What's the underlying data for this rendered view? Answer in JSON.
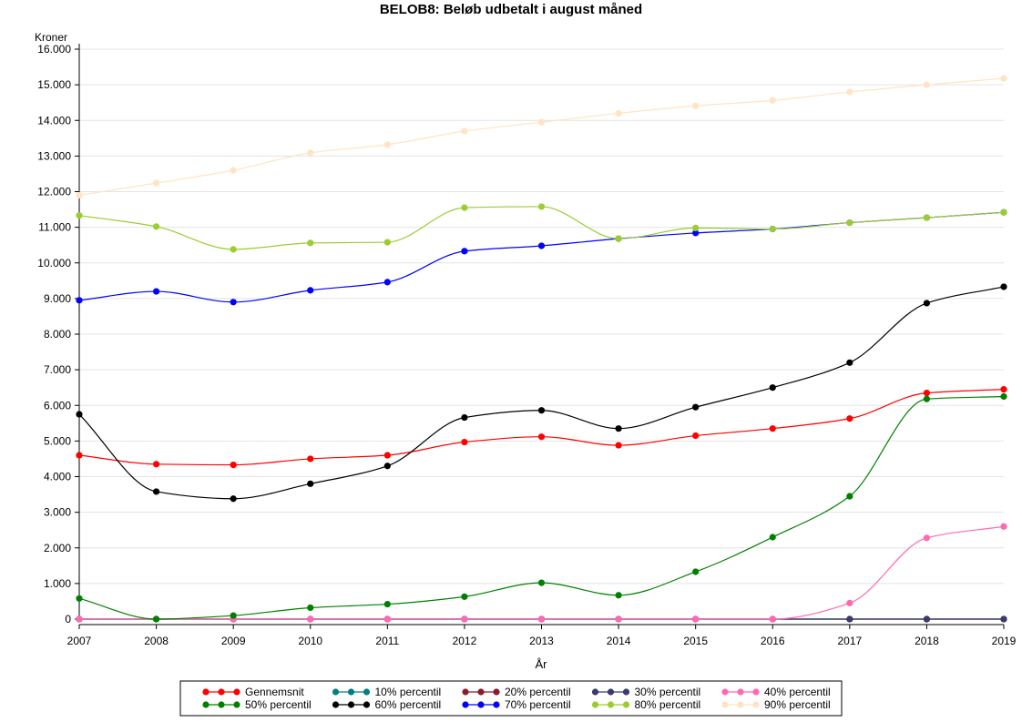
{
  "chart_data": {
    "type": "line",
    "title": "BELOB8: Beløb udbetalt i august måned",
    "xlabel": "År",
    "ylabel": "Kroner",
    "x": [
      2007,
      2008,
      2009,
      2010,
      2011,
      2012,
      2013,
      2014,
      2015,
      2016,
      2017,
      2018,
      2019
    ],
    "x_tick_labels": [
      "2007",
      "2008",
      "2009",
      "2010",
      "2011",
      "2012",
      "2013",
      "2014",
      "2015",
      "2016",
      "2017",
      "2018",
      "2019"
    ],
    "ylim": [
      0,
      16000
    ],
    "y_ticks": [
      0,
      1000,
      2000,
      3000,
      4000,
      5000,
      6000,
      7000,
      8000,
      9000,
      10000,
      11000,
      12000,
      13000,
      14000,
      15000,
      16000
    ],
    "y_tick_labels": [
      "0",
      "1.000",
      "2.000",
      "3.000",
      "4.000",
      "5.000",
      "6.000",
      "7.000",
      "8.000",
      "9.000",
      "10.000",
      "11.000",
      "12.000",
      "13.000",
      "14.000",
      "15.000",
      "16.000"
    ],
    "grid": "horizontal",
    "legend_position": "bottom",
    "series": [
      {
        "name": "Gennemsnit",
        "color": "#ff0000",
        "values": [
          4600,
          4350,
          4330,
          4500,
          4600,
          4970,
          5120,
          4880,
          5150,
          5350,
          5630,
          6350,
          6450
        ]
      },
      {
        "name": "10% percentil",
        "color": "#008080",
        "values": [
          0,
          0,
          0,
          0,
          0,
          0,
          0,
          0,
          0,
          0,
          0,
          0,
          0
        ]
      },
      {
        "name": "20% percentil",
        "color": "#8b1a2f",
        "values": [
          0,
          0,
          0,
          0,
          0,
          0,
          0,
          0,
          0,
          0,
          0,
          0,
          0
        ]
      },
      {
        "name": "30% percentil",
        "color": "#3a3a6e",
        "values": [
          0,
          0,
          0,
          0,
          0,
          0,
          0,
          0,
          0,
          0,
          0,
          0,
          0
        ]
      },
      {
        "name": "40% percentil",
        "color": "#ff69b4",
        "values": [
          0,
          0,
          0,
          0,
          0,
          0,
          0,
          0,
          0,
          0,
          450,
          2280,
          2600
        ]
      },
      {
        "name": "50% percentil",
        "color": "#008000",
        "values": [
          580,
          0,
          100,
          320,
          420,
          630,
          1020,
          670,
          1330,
          2300,
          3450,
          6180,
          6250
        ]
      },
      {
        "name": "60% percentil",
        "color": "#000000",
        "values": [
          5750,
          3580,
          3380,
          3800,
          4300,
          5660,
          5860,
          5350,
          5950,
          6500,
          7200,
          8870,
          9330
        ]
      },
      {
        "name": "70% percentil",
        "color": "#0000ff",
        "values": [
          8950,
          9200,
          8900,
          9230,
          9460,
          10330,
          10480,
          10680,
          10840,
          10950,
          11130,
          11270,
          11420
        ]
      },
      {
        "name": "80% percentil",
        "color": "#9acd32",
        "values": [
          11330,
          11020,
          10380,
          10560,
          10580,
          11550,
          11580,
          10680,
          10980,
          10950,
          11130,
          11270,
          11420
        ]
      },
      {
        "name": "90% percentil",
        "color": "#ffe4c4",
        "values": [
          11900,
          12240,
          12600,
          13090,
          13320,
          13700,
          13950,
          14200,
          14410,
          14560,
          14800,
          15000,
          15180
        ]
      }
    ]
  }
}
